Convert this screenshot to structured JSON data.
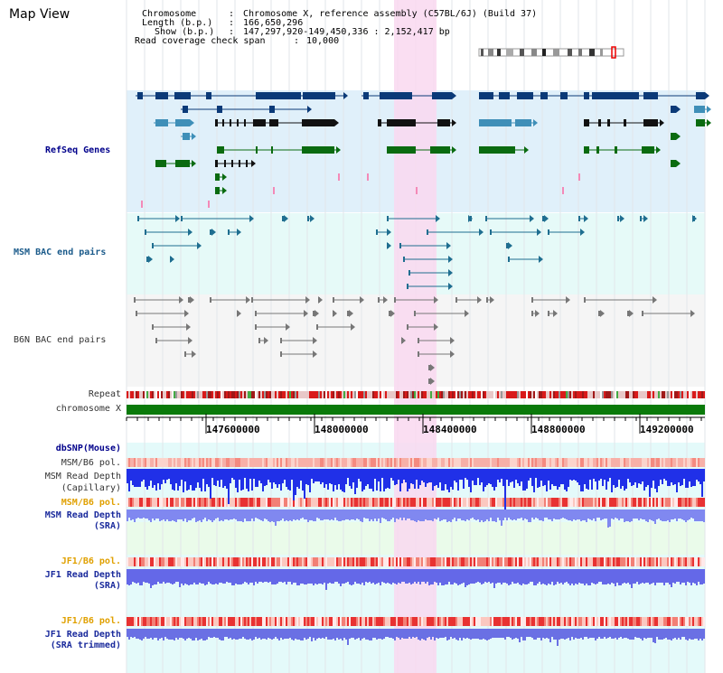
{
  "app": {
    "title": "Map View"
  },
  "info": {
    "chromosome_label": "Chromosome",
    "chromosome_value": "Chromosome X, reference assembly (C57BL/6J) (Build 37)",
    "length_label": "Length (b.p.)",
    "length_value": "166,650,296",
    "show_label": "Show (b.p.)",
    "show_value": "147,297,920-149,450,336 : 2,152,417 bp",
    "coverage_label": "Read coverage check span",
    "coverage_value": "10,000"
  },
  "tracks": {
    "refseq": "RefSeq Genes",
    "msm_bac": "MSM BAC end pairs",
    "b6n_bac": "B6N BAC end pairs",
    "repeat": "Repeat",
    "chromosome": "chromosome X",
    "dbsnp": "dbSNP(Mouse)",
    "msm_b6_pol_1": "MSM/B6 pol.",
    "msm_depth_cap_1": "MSM Read Depth",
    "msm_depth_cap_2": "(Capillary)",
    "msm_b6_pol_2": "MSM/B6 pol.",
    "msm_depth_sra_1": "MSM Read Depth",
    "msm_depth_sra_2": "(SRA)",
    "jf1_b6_pol_1": "JF1/B6 pol.",
    "jf1_depth_1": "JF1 Read Depth",
    "jf1_depth_2": "(SRA)",
    "jf1_b6_pol_2": "JF1/B6 pol.",
    "jf1_trim_1": "JF1 Read Depth",
    "jf1_trim_2": "(SRA trimmed)"
  },
  "axis": {
    "ticks": [
      "147600000",
      "148000000",
      "148400000",
      "148800000",
      "149200000"
    ]
  },
  "colors": {
    "refseq_bg": "#e0f0fa",
    "msm_bg": "#e6faf8",
    "b6n_bg": "#f5f5f5",
    "highlight": "#f9d8f0",
    "gene_dark": "#0b3a78",
    "gene_light": "#3f8fb8",
    "gene_green": "#0a6b10",
    "chrom_green": "#0a7a0a",
    "depth_blue": "#2030e8",
    "depth_light": "#8088f0"
  }
}
